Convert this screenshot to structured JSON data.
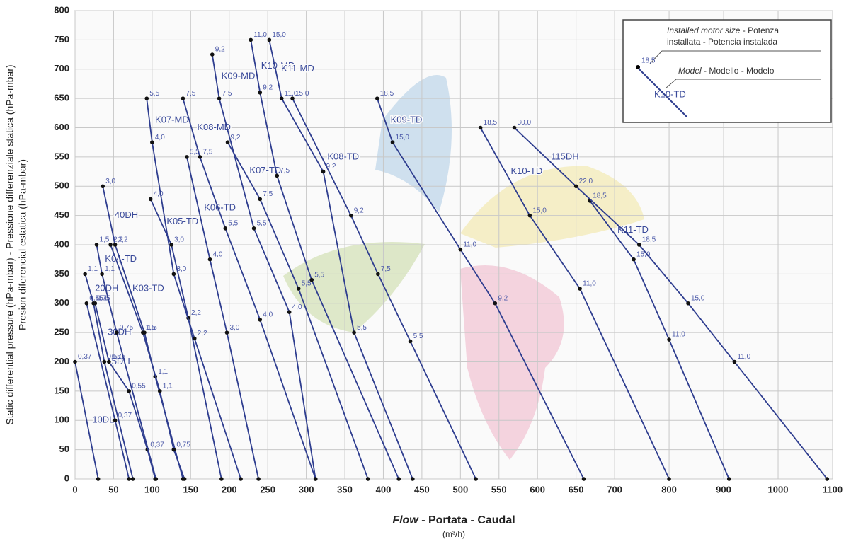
{
  "chart_data": {
    "type": "line",
    "ylabel": "Static differential pressure (hPa-mbar) - Pressione differenziale statica (hPa-mbar)",
    "ylabel2": "Presion diferencial estatica (hPa-mbar)",
    "xlabel_emphasis": "Flow",
    "xlabel": "- Portata - Caudal",
    "xunit": "(m³/h)",
    "legend_box": {
      "motor_emphasis": "Installed motor size",
      "motor_line1": "- Potenza",
      "motor_line2": "installata - Potencia instalada",
      "sample_motor": "18,5",
      "model_emphasis": "Model",
      "model_text": "- Modello - Modelo",
      "sample_model": "K10-TD"
    },
    "xlim": [
      0,
      1100
    ],
    "ylim": [
      0,
      800
    ],
    "xticks": [
      0,
      50,
      100,
      150,
      200,
      250,
      300,
      350,
      400,
      450,
      500,
      550,
      600,
      650,
      700,
      800,
      900,
      1000,
      1100
    ],
    "yticks": [
      0,
      50,
      100,
      150,
      200,
      250,
      300,
      350,
      400,
      450,
      500,
      550,
      600,
      650,
      700,
      750,
      800
    ],
    "grid": true,
    "line_color": "#2e3d8f",
    "series": [
      {
        "name": "10DL",
        "x": [
          0,
          30
        ],
        "values": [
          200,
          0
        ],
        "point_labels": [
          "0,37",
          null
        ]
      },
      {
        "name": "15DH",
        "x": [
          15,
          52,
          70
        ],
        "values": [
          300,
          100,
          0
        ],
        "point_labels": [
          "0,55",
          "0,37",
          null
        ]
      },
      {
        "name": "20DH",
        "x": [
          13,
          24,
          38,
          75
        ],
        "values": [
          350,
          300,
          200,
          0
        ],
        "point_labels": [
          "1,1",
          "0,75",
          "0,55",
          null
        ]
      },
      {
        "name": "30DH",
        "x": [
          26,
          44,
          70,
          94,
          104
        ],
        "values": [
          300,
          200,
          150,
          50,
          0
        ],
        "point_labels": [
          "1,1",
          "0,75",
          "0,55",
          "0,37",
          null
        ]
      },
      {
        "name": "K04-TD",
        "x": [
          28,
          35,
          54,
          105
        ],
        "values": [
          400,
          350,
          250,
          0
        ],
        "point_labels": [
          "1,5",
          "1,1",
          "0,75",
          null
        ]
      },
      {
        "name": "40DH",
        "x": [
          36,
          52,
          90,
          104,
          140
        ],
        "values": [
          500,
          400,
          250,
          175,
          0
        ],
        "point_labels": [
          "3,0",
          "2,2",
          "1,5",
          "1,1",
          null
        ]
      },
      {
        "name": "K03-TD",
        "x": [
          46,
          88,
          110,
          128,
          142
        ],
        "values": [
          400,
          250,
          150,
          50,
          0
        ],
        "point_labels": [
          "2,2",
          "1,5",
          "1,1",
          "0,75",
          null
        ]
      },
      {
        "name": "K05-TD",
        "x": [
          98,
          125,
          147,
          190
        ],
        "values": [
          478,
          400,
          275,
          0
        ],
        "point_labels": [
          "4,0",
          "3,0",
          "2,2",
          null
        ]
      },
      {
        "name": "K07-MD",
        "x": [
          93,
          100,
          128,
          155,
          215
        ],
        "values": [
          650,
          575,
          350,
          240,
          0
        ],
        "point_labels": [
          "5,5",
          "4,0",
          "3,0",
          "2,2",
          null
        ]
      },
      {
        "name": "K06-TD",
        "x": [
          145,
          175,
          197,
          238
        ],
        "values": [
          550,
          375,
          250,
          0
        ],
        "point_labels": [
          "5,5",
          "4,0",
          "3,0",
          null
        ]
      },
      {
        "name": "K08-MD",
        "x": [
          140,
          162,
          195,
          240,
          312
        ],
        "values": [
          650,
          550,
          428,
          272,
          0
        ],
        "point_labels": [
          "7,5",
          "7,5",
          "5,5",
          "4,0",
          null
        ]
      },
      {
        "name": "K09-MD",
        "x": [
          178,
          187,
          232,
          278,
          312
        ],
        "values": [
          725,
          650,
          428,
          285,
          0
        ],
        "point_labels": [
          "9,2",
          "7,5",
          "5,5",
          "4,0",
          null
        ]
      },
      {
        "name": "K07-TD",
        "x": [
          198,
          240,
          290,
          380
        ],
        "values": [
          575,
          478,
          325,
          0
        ],
        "point_labels": [
          "9,2",
          "7,5",
          "5,5",
          null
        ]
      },
      {
        "name": "K10-MD",
        "x": [
          228,
          240,
          262,
          307,
          420
        ],
        "values": [
          750,
          660,
          518,
          340,
          0
        ],
        "point_labels": [
          "11,0",
          "9,2",
          "7,5",
          "5,5",
          null
        ]
      },
      {
        "name": "K11-MD",
        "x": [
          252,
          268,
          322,
          362,
          438
        ],
        "values": [
          750,
          650,
          525,
          250,
          0
        ],
        "point_labels": [
          "15,0",
          "11,0",
          "9,2",
          "5,5",
          null
        ]
      },
      {
        "name": "K08-TD",
        "x": [
          282,
          358,
          393,
          435,
          520
        ],
        "values": [
          650,
          450,
          350,
          235,
          0
        ],
        "point_labels": [
          "15,0",
          "9,2",
          "7,5",
          "5,5",
          null
        ]
      },
      {
        "name": "K09-TD",
        "x": [
          392,
          412,
          500,
          545,
          660
        ],
        "values": [
          650,
          575,
          392,
          300,
          0
        ],
        "point_labels": [
          "18,5",
          "15,0",
          "11,0",
          "9,2",
          null
        ]
      },
      {
        "name": "K10-TD",
        "x": [
          526,
          590,
          655,
          800
        ],
        "values": [
          600,
          450,
          325,
          0
        ],
        "point_labels": [
          "18,5",
          "15,0",
          "11,0",
          null
        ]
      },
      {
        "name": "K11-TD",
        "x": [
          668,
          735,
          800,
          910
        ],
        "values": [
          475,
          375,
          238,
          0
        ],
        "point_labels": [
          "18,5",
          "15,0",
          "11,0",
          null
        ]
      },
      {
        "name": "115DH",
        "x": [
          570,
          650,
          745,
          835,
          920,
          1090
        ],
        "values": [
          600,
          500,
          400,
          300,
          200,
          0
        ],
        "point_labels": [
          "30,0",
          "22,0",
          "18,5",
          "15,0",
          "11,0",
          null
        ]
      }
    ]
  }
}
